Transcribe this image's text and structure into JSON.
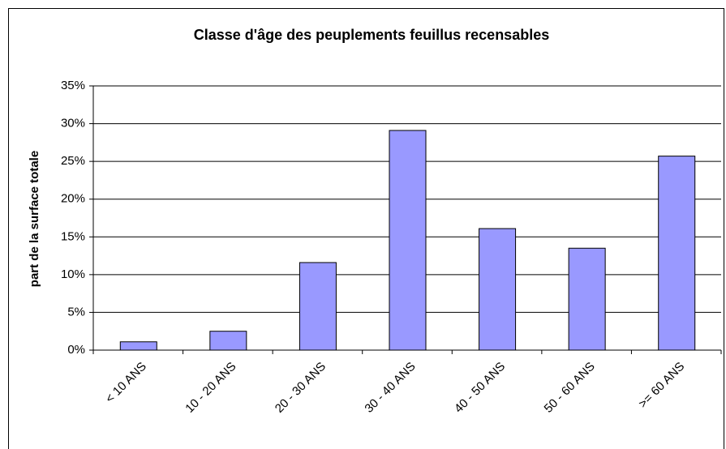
{
  "chart_data": {
    "type": "bar",
    "title": "Classe d'âge des peuplements feuillus recensables",
    "y_label": "part de la surface totale",
    "categories": [
      "< 10 ANS",
      "10 - 20 ANS",
      "20 - 30 ANS",
      "30 - 40 ANS",
      "40 - 50 ANS",
      "50 - 60 ANS",
      ">= 60 ANS"
    ],
    "values": [
      1.1,
      2.5,
      11.6,
      29.1,
      16.1,
      13.5,
      25.7
    ],
    "color": "#9999ff",
    "ylim": [
      0,
      35
    ],
    "yticks": [
      {
        "value": 0,
        "label": "0%"
      },
      {
        "value": 5,
        "label": "5%"
      },
      {
        "value": 10,
        "label": "10%"
      },
      {
        "value": 15,
        "label": "15%"
      },
      {
        "value": 20,
        "label": "20%"
      },
      {
        "value": 25,
        "label": "25%"
      },
      {
        "value": 30,
        "label": "30%"
      },
      {
        "value": 35,
        "label": "35%"
      }
    ],
    "grid": true
  }
}
